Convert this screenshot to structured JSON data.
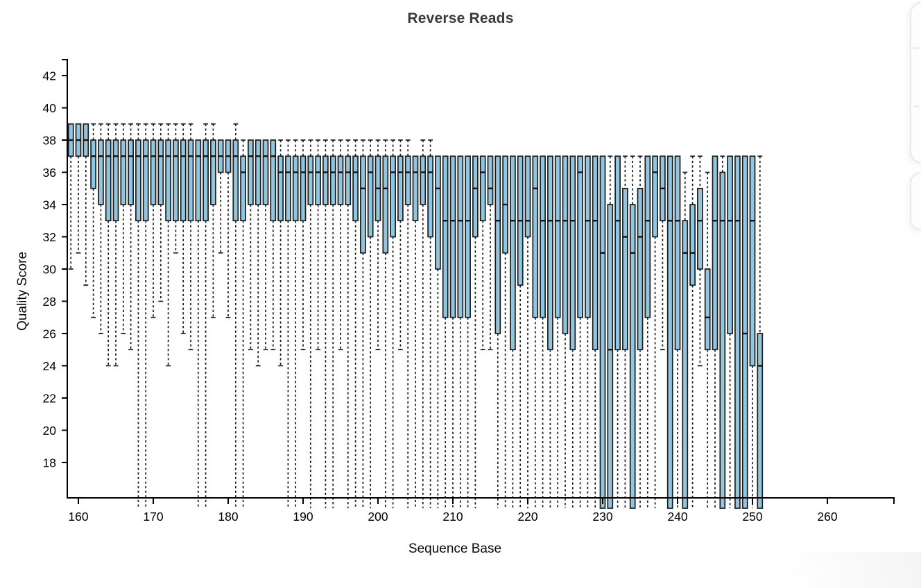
{
  "chart_data": {
    "type": "boxplot",
    "title": "Reverse Reads",
    "xlabel": "Sequence Base",
    "ylabel": "Quality Score",
    "xlim": [
      158.5,
      269
    ],
    "ylim": [
      16,
      43
    ],
    "x_ticks": [
      160,
      170,
      180,
      190,
      200,
      210,
      220,
      230,
      240,
      250,
      260
    ],
    "y_ticks": [
      18,
      20,
      22,
      24,
      26,
      28,
      30,
      32,
      34,
      36,
      38,
      40,
      42
    ],
    "grid": false,
    "legend": "none",
    "clip_value": 16,
    "clip_note": "values equal to clip_value are cut off below the bottom axis",
    "box_columns": [
      "x",
      "whisker_low",
      "q1",
      "median",
      "q3",
      "whisker_high"
    ],
    "boxes": [
      [
        159,
        30,
        37,
        38,
        39,
        39
      ],
      [
        160,
        31,
        37,
        38,
        39,
        39
      ],
      [
        161,
        29,
        37,
        38,
        39,
        39
      ],
      [
        162,
        27,
        35,
        37,
        38,
        39
      ],
      [
        163,
        26,
        34,
        37,
        38,
        39
      ],
      [
        164,
        24,
        33,
        37,
        38,
        39
      ],
      [
        165,
        24,
        33,
        37,
        38,
        39
      ],
      [
        166,
        26,
        34,
        37,
        38,
        39
      ],
      [
        167,
        25,
        34,
        37,
        38,
        39
      ],
      [
        168,
        16,
        33,
        37,
        38,
        39
      ],
      [
        169,
        16,
        33,
        37,
        38,
        39
      ],
      [
        170,
        27,
        34,
        37,
        38,
        39
      ],
      [
        171,
        28,
        34,
        37,
        38,
        39
      ],
      [
        172,
        24,
        33,
        37,
        38,
        39
      ],
      [
        173,
        31,
        33,
        37,
        38,
        39
      ],
      [
        174,
        26,
        33,
        37,
        38,
        39
      ],
      [
        175,
        25,
        33,
        37,
        38,
        39
      ],
      [
        176,
        16,
        33,
        37,
        38,
        38
      ],
      [
        177,
        16,
        33,
        37,
        38,
        39
      ],
      [
        178,
        27,
        34,
        37,
        38,
        39
      ],
      [
        179,
        31,
        36,
        37,
        38,
        38
      ],
      [
        180,
        27,
        36,
        37,
        38,
        38
      ],
      [
        181,
        16,
        33,
        37,
        38,
        39
      ],
      [
        182,
        16,
        33,
        36,
        37,
        38
      ],
      [
        183,
        25,
        34,
        37,
        38,
        38
      ],
      [
        184,
        24,
        34,
        37,
        38,
        38
      ],
      [
        185,
        25,
        34,
        37,
        38,
        38
      ],
      [
        186,
        25,
        33,
        37,
        38,
        38
      ],
      [
        187,
        24,
        33,
        36,
        37,
        38
      ],
      [
        188,
        16,
        33,
        36,
        37,
        38
      ],
      [
        189,
        16,
        33,
        36,
        37,
        38
      ],
      [
        190,
        25,
        33,
        36,
        37,
        38
      ],
      [
        191,
        16,
        34,
        36,
        37,
        38
      ],
      [
        192,
        25,
        34,
        36,
        37,
        38
      ],
      [
        193,
        16,
        34,
        36,
        37,
        38
      ],
      [
        194,
        16,
        34,
        36,
        37,
        38
      ],
      [
        195,
        25,
        34,
        36,
        37,
        38
      ],
      [
        196,
        16,
        34,
        36,
        37,
        38
      ],
      [
        197,
        16,
        33,
        36,
        37,
        38
      ],
      [
        198,
        16,
        31,
        35,
        37,
        38
      ],
      [
        199,
        16,
        32,
        36,
        37,
        38
      ],
      [
        200,
        25,
        33,
        35,
        37,
        38
      ],
      [
        201,
        16,
        31,
        35,
        37,
        38
      ],
      [
        202,
        16,
        32,
        36,
        37,
        38
      ],
      [
        203,
        25,
        33,
        36,
        37,
        38
      ],
      [
        204,
        16,
        34,
        36,
        37,
        38
      ],
      [
        205,
        16,
        33,
        36,
        37,
        37
      ],
      [
        206,
        16,
        34,
        36,
        37,
        38
      ],
      [
        207,
        16,
        32,
        36,
        37,
        38
      ],
      [
        208,
        16,
        30,
        35,
        37,
        37
      ],
      [
        209,
        16,
        27,
        33,
        37,
        37
      ],
      [
        210,
        16,
        27,
        33,
        37,
        37
      ],
      [
        211,
        16,
        27,
        33,
        37,
        37
      ],
      [
        212,
        16,
        27,
        33,
        37,
        37
      ],
      [
        213,
        16,
        32,
        35,
        37,
        37
      ],
      [
        214,
        25,
        33,
        36,
        37,
        37
      ],
      [
        215,
        25,
        34,
        35,
        37,
        37
      ],
      [
        216,
        16,
        26,
        33,
        37,
        37
      ],
      [
        217,
        16,
        31,
        34,
        37,
        37
      ],
      [
        218,
        16,
        25,
        33,
        37,
        37
      ],
      [
        219,
        16,
        29,
        33,
        37,
        37
      ],
      [
        220,
        16,
        32,
        33,
        37,
        37
      ],
      [
        221,
        16,
        27,
        35,
        37,
        37
      ],
      [
        222,
        16,
        27,
        33,
        37,
        37
      ],
      [
        223,
        16,
        25,
        33,
        37,
        37
      ],
      [
        224,
        16,
        27,
        33,
        37,
        37
      ],
      [
        225,
        16,
        26,
        33,
        37,
        37
      ],
      [
        226,
        16,
        25,
        33,
        37,
        37
      ],
      [
        227,
        16,
        27,
        36,
        37,
        37
      ],
      [
        228,
        16,
        27,
        33,
        37,
        37
      ],
      [
        229,
        16,
        25,
        33,
        37,
        37
      ],
      [
        230,
        16,
        16,
        31,
        37,
        37
      ],
      [
        231,
        16,
        16,
        25,
        34,
        37
      ],
      [
        232,
        16,
        25,
        33,
        37,
        37
      ],
      [
        233,
        16,
        25,
        32,
        35,
        37
      ],
      [
        234,
        16,
        16,
        31,
        34,
        37
      ],
      [
        235,
        16,
        25,
        32,
        35,
        37
      ],
      [
        236,
        16,
        27,
        33,
        37,
        37
      ],
      [
        237,
        16,
        32,
        36,
        37,
        37
      ],
      [
        238,
        25,
        33,
        35,
        37,
        37
      ],
      [
        239,
        16,
        16,
        33,
        37,
        37
      ],
      [
        240,
        16,
        25,
        33,
        37,
        37
      ],
      [
        241,
        16,
        16,
        31,
        33,
        36
      ],
      [
        242,
        16,
        29,
        31,
        34,
        37
      ],
      [
        243,
        24,
        30,
        33,
        35,
        37
      ],
      [
        244,
        16,
        25,
        27,
        30,
        36
      ],
      [
        245,
        16,
        25,
        33,
        37,
        37
      ],
      [
        246,
        16,
        16,
        33,
        36,
        37
      ],
      [
        247,
        16,
        26,
        33,
        37,
        37
      ],
      [
        248,
        16,
        16,
        33,
        37,
        37
      ],
      [
        249,
        16,
        16,
        26,
        37,
        37
      ],
      [
        250,
        16,
        24,
        33,
        37,
        37
      ],
      [
        251,
        16,
        16,
        24,
        26,
        37
      ]
    ],
    "colors": {
      "box_fill": "#92c5de",
      "box_stroke": "#1b1b1b",
      "median": "#111111",
      "whisker": "#1b1b1b",
      "axis": "#000000",
      "title": "#3a3a3a",
      "tick_label": "#000000"
    }
  }
}
